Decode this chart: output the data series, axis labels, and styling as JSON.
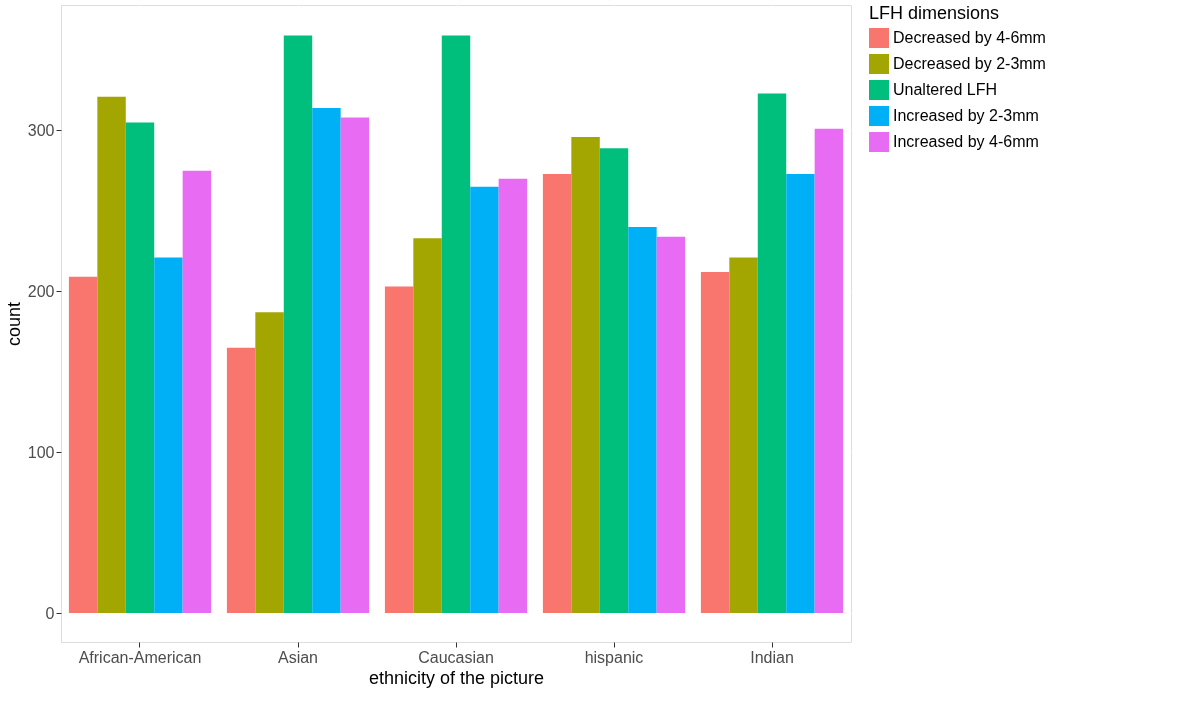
{
  "chart_data": {
    "type": "bar",
    "xlabel": "ethnicity of the picture",
    "ylabel": "count",
    "legend_title": "LFH dimensions",
    "categories": [
      "African-American",
      "Asian",
      "Caucasian",
      "hispanic",
      "Indian"
    ],
    "series": [
      {
        "name": "Decreased by 4-6mm",
        "color": "#f8766d",
        "values": [
          209,
          165,
          203,
          273,
          212
        ]
      },
      {
        "name": "Decreased by 2-3mm",
        "color": "#a3a500",
        "values": [
          321,
          187,
          233,
          296,
          221
        ]
      },
      {
        "name": "Unaltered LFH",
        "color": "#00bf7d",
        "values": [
          305,
          359,
          359,
          289,
          323
        ]
      },
      {
        "name": "Increased by 2-3mm",
        "color": "#00b0f6",
        "values": [
          221,
          314,
          265,
          240,
          273
        ]
      },
      {
        "name": "Increased by 4-6mm",
        "color": "#e76bf3",
        "values": [
          275,
          308,
          270,
          234,
          301
        ]
      }
    ],
    "ylim": [
      -18,
      378
    ],
    "yticks": [
      0,
      100,
      200,
      300
    ],
    "grid": true,
    "legend": "right"
  }
}
